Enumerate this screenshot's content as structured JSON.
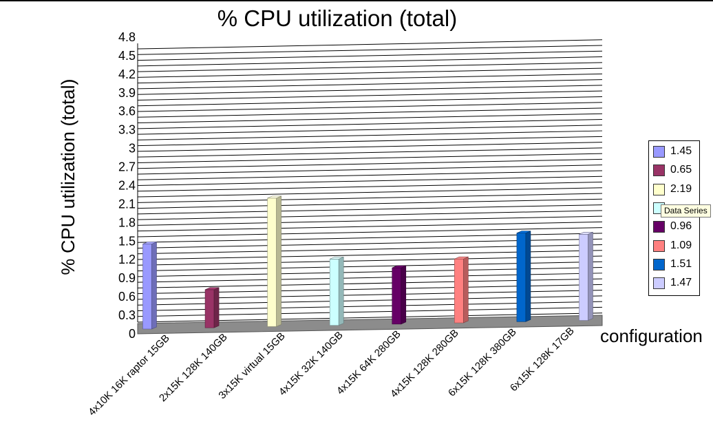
{
  "chart_data": {
    "type": "bar",
    "title": "% CPU utilization (total)",
    "ylabel": "% CPU utilization (total)",
    "xlabel": "configuration",
    "ylim": [
      0,
      4.8
    ],
    "y_ticks": [
      "0",
      "0.3",
      "0.6",
      "0.9",
      "1.2",
      "1.5",
      "1.8",
      "2.1",
      "2.4",
      "2.7",
      "3",
      "3.3",
      "3.6",
      "3.9",
      "4.2",
      "4.5",
      "4.8"
    ],
    "categories": [
      "4x10K 16K raptor 15GB",
      "2x15K 128K 140GB",
      "3x15K virtual 15GB",
      "4x15K 32K 140GB",
      "4x15K 64K 280GB",
      "4x15K 128K 280GB",
      "6x15K 128K 380GB",
      "6x15K 128K 17GB"
    ],
    "values": [
      1.45,
      0.65,
      2.19,
      1.13,
      0.96,
      1.09,
      1.51,
      1.47
    ],
    "colors": [
      "#9999ff",
      "#993366",
      "#ffffcc",
      "#ccffff",
      "#660066",
      "#ff8080",
      "#0066cc",
      "#ccccff"
    ],
    "legend": {
      "placement": "right",
      "labels": [
        "1.45",
        "0.65",
        "2.19",
        "",
        "0.96",
        "1.09",
        "1.51",
        "1.47"
      ]
    },
    "grid": true
  },
  "tooltip": {
    "text": "Data Series"
  }
}
